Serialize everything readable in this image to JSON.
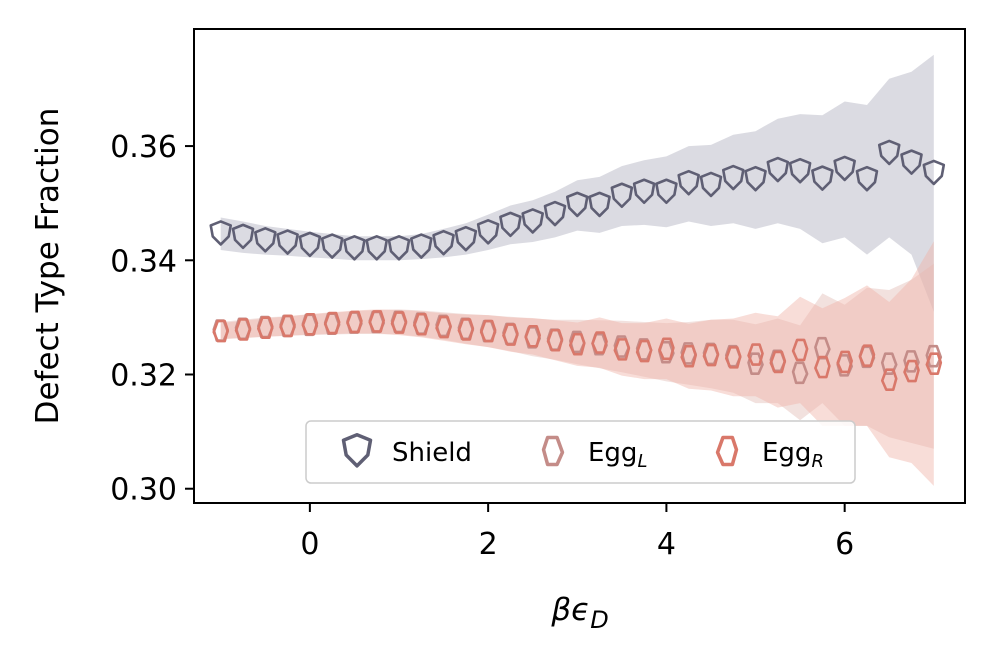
{
  "chart_data": {
    "type": "scatter",
    "title": "",
    "xlabel": "βϵ",
    "xlabel_sub": "D",
    "ylabel": "Defect Type Fraction",
    "xlim": [
      -1.3,
      7.35
    ],
    "ylim": [
      0.2975,
      0.3805
    ],
    "xticks": [
      0,
      2,
      4,
      6
    ],
    "xtick_labels": [
      "0",
      "2",
      "4",
      "6"
    ],
    "yticks": [
      0.3,
      0.32,
      0.34,
      0.36
    ],
    "ytick_labels": [
      "0.30",
      "0.32",
      "0.34",
      "0.36"
    ],
    "grid": false,
    "legend_position": "lower-center",
    "x": [
      -1.0,
      -0.75,
      -0.5,
      -0.25,
      0.0,
      0.25,
      0.5,
      0.75,
      1.0,
      1.25,
      1.5,
      1.75,
      2.0,
      2.25,
      2.5,
      2.75,
      3.0,
      3.25,
      3.5,
      3.75,
      4.0,
      4.25,
      4.5,
      4.75,
      5.0,
      5.25,
      5.5,
      5.75,
      6.0,
      6.25,
      6.5,
      6.75,
      7.0
    ],
    "series": [
      {
        "name": "Shield",
        "label_main": "Shield",
        "label_sub": "",
        "marker": "shield",
        "color": "#5f5f74",
        "band_color": "#b8b8c6",
        "values": [
          0.3447,
          0.3441,
          0.3435,
          0.3431,
          0.3427,
          0.3424,
          0.3421,
          0.3421,
          0.3421,
          0.3424,
          0.343,
          0.3437,
          0.3449,
          0.3462,
          0.3468,
          0.3481,
          0.3497,
          0.3497,
          0.3513,
          0.352,
          0.352,
          0.3535,
          0.3532,
          0.3544,
          0.3542,
          0.3558,
          0.3556,
          0.3543,
          0.356,
          0.3542,
          0.3588,
          0.3571,
          0.3553
        ],
        "lower": [
          0.3418,
          0.3413,
          0.341,
          0.3408,
          0.3405,
          0.3403,
          0.34,
          0.34,
          0.34,
          0.3402,
          0.3405,
          0.341,
          0.3418,
          0.3428,
          0.3432,
          0.344,
          0.3452,
          0.3448,
          0.346,
          0.3462,
          0.3458,
          0.3468,
          0.346,
          0.3465,
          0.3455,
          0.3465,
          0.3455,
          0.343,
          0.344,
          0.341,
          0.344,
          0.341,
          0.331
        ],
        "upper": [
          0.3475,
          0.3468,
          0.346,
          0.3455,
          0.345,
          0.3446,
          0.3442,
          0.3442,
          0.3442,
          0.3446,
          0.3455,
          0.3465,
          0.348,
          0.3496,
          0.3505,
          0.352,
          0.354,
          0.3546,
          0.3565,
          0.3575,
          0.3582,
          0.36,
          0.3602,
          0.362,
          0.3626,
          0.3648,
          0.3656,
          0.3654,
          0.3678,
          0.3672,
          0.3718,
          0.373,
          0.376
        ]
      },
      {
        "name": "EggL",
        "label_main": "Egg",
        "label_sub": "L",
        "marker": "egg",
        "color": "#c48c88",
        "band_color": "#e3bcb5",
        "values": [
          0.3277,
          0.328,
          0.3283,
          0.3285,
          0.3287,
          0.3289,
          0.3291,
          0.3292,
          0.3292,
          0.3289,
          0.3285,
          0.328,
          0.3276,
          0.3271,
          0.3265,
          0.3261,
          0.3257,
          0.3253,
          0.3249,
          0.3244,
          0.3239,
          0.3237,
          0.3236,
          0.3232,
          0.3219,
          0.3224,
          0.3203,
          0.3246,
          0.3216,
          0.3231,
          0.3219,
          0.3223,
          0.3232
        ],
        "lower": [
          0.3262,
          0.3264,
          0.3266,
          0.3268,
          0.3269,
          0.327,
          0.3271,
          0.3271,
          0.327,
          0.3266,
          0.3261,
          0.3254,
          0.3248,
          0.3241,
          0.3232,
          0.3226,
          0.3218,
          0.3211,
          0.3204,
          0.3196,
          0.3188,
          0.3182,
          0.3176,
          0.3168,
          0.315,
          0.315,
          0.312,
          0.315,
          0.311,
          0.311,
          0.309,
          0.308,
          0.307
        ],
        "upper": [
          0.3292,
          0.3296,
          0.33,
          0.3302,
          0.3305,
          0.3308,
          0.3311,
          0.3313,
          0.3314,
          0.3312,
          0.3309,
          0.3306,
          0.3304,
          0.3301,
          0.3298,
          0.3296,
          0.3296,
          0.3295,
          0.3294,
          0.3292,
          0.329,
          0.3292,
          0.3296,
          0.3296,
          0.3288,
          0.3298,
          0.3286,
          0.3342,
          0.3322,
          0.3352,
          0.3348,
          0.3366,
          0.3394
        ]
      },
      {
        "name": "EggR",
        "label_main": "Egg",
        "label_sub": "R",
        "marker": "egg-r",
        "color": "#d9786a",
        "band_color": "#f0b3a8",
        "values": [
          0.3276,
          0.3279,
          0.3282,
          0.3285,
          0.3288,
          0.329,
          0.3292,
          0.3293,
          0.3291,
          0.3288,
          0.3283,
          0.3279,
          0.3276,
          0.327,
          0.3267,
          0.326,
          0.3253,
          0.3256,
          0.3244,
          0.3241,
          0.3245,
          0.3232,
          0.3234,
          0.323,
          0.3235,
          0.3222,
          0.3243,
          0.3213,
          0.3222,
          0.3233,
          0.3191,
          0.3206,
          0.3219
        ],
        "lower": [
          0.3262,
          0.3264,
          0.3266,
          0.3268,
          0.327,
          0.3271,
          0.3272,
          0.3272,
          0.3269,
          0.3265,
          0.3259,
          0.3253,
          0.3248,
          0.324,
          0.3235,
          0.3225,
          0.3215,
          0.3212,
          0.3198,
          0.3192,
          0.3192,
          0.3175,
          0.3172,
          0.3162,
          0.3162,
          0.3142,
          0.315,
          0.311,
          0.311,
          0.311,
          0.3055,
          0.3045,
          0.3005
        ],
        "upper": [
          0.329,
          0.3294,
          0.3298,
          0.3302,
          0.3306,
          0.3309,
          0.3312,
          0.3314,
          0.3313,
          0.3311,
          0.3307,
          0.3305,
          0.3304,
          0.33,
          0.3299,
          0.3295,
          0.3291,
          0.33,
          0.329,
          0.329,
          0.3298,
          0.3289,
          0.3296,
          0.3298,
          0.3308,
          0.3302,
          0.3336,
          0.3316,
          0.3334,
          0.3356,
          0.3327,
          0.3367,
          0.3433
        ]
      }
    ]
  }
}
